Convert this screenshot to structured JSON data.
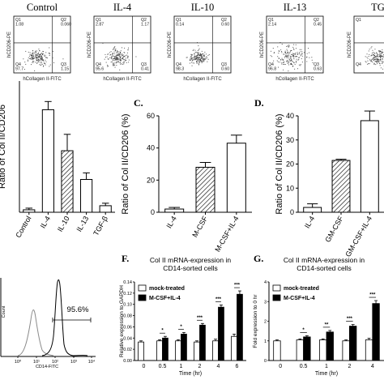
{
  "flow_panels": [
    {
      "title": "Control",
      "ylabel": "hCD206-PE",
      "xlabel": "hCollagen II-FITC",
      "q1": "Q1\n1.08",
      "q2": "Q2\n0.060",
      "q3": "Q3\n1.15",
      "q4": "Q4\n97.7"
    },
    {
      "title": "IL-4",
      "ylabel": "hCD206-PE",
      "xlabel": "hCollagen II-FITC",
      "q1": "Q1\n2.87",
      "q2": "Q2\n1.17",
      "q3": "Q3\n0.41",
      "q4": "Q4\n95.6"
    },
    {
      "title": "IL-10",
      "ylabel": "hCD206-PE",
      "xlabel": "hCollagen II-FITC",
      "q1": "Q1\n0.14",
      "q2": "Q2\n0.60",
      "q3": "Q3\n0.60",
      "q4": "Q4\n98.3"
    },
    {
      "title": "IL-13",
      "ylabel": "hCD206-PE",
      "xlabel": "hCollagen II-FITC",
      "q1": "Q1\n2.14",
      "q2": "Q2\n0.45",
      "q3": "Q3\n0.63",
      "q4": "Q4\n96.8"
    },
    {
      "title": "TGF-",
      "ylabel": "hCD206-PE",
      "xlabel": "",
      "q1": "Q1",
      "q2": "",
      "q3": "",
      "q4": "Q4"
    }
  ],
  "panel_letters": {
    "c": "C.",
    "d": "D.",
    "f": "F.",
    "g": "G."
  },
  "chart_data": [
    {
      "id": "B",
      "type": "bar",
      "ylabel": "Ratio of Col II/CD206",
      "ylim": [
        0,
        1.6
      ],
      "categories": [
        "Control",
        "IL-4",
        "IL-10",
        "IL-13",
        "TGF-β"
      ],
      "values": [
        0.03,
        1.25,
        0.75,
        0.4,
        0.08
      ],
      "errors": [
        0.02,
        0.1,
        0.2,
        0.08,
        0.03
      ],
      "hatch": [
        false,
        false,
        true,
        false,
        false
      ]
    },
    {
      "id": "C",
      "type": "bar",
      "ylabel": "Ratio of Col II/CD206 (%)",
      "ylim": [
        0,
        60
      ],
      "yticks": [
        0,
        20,
        40,
        60
      ],
      "categories": [
        "IL-4",
        "M-CSF",
        "M-CSF+IL-4"
      ],
      "values": [
        2,
        28,
        43
      ],
      "errors": [
        1,
        3,
        5
      ],
      "hatch": [
        false,
        true,
        false
      ]
    },
    {
      "id": "D",
      "type": "bar",
      "ylabel": "Ratio of Col II/CD206 (%)",
      "ylim": [
        0,
        40
      ],
      "yticks": [
        0,
        10,
        20,
        30,
        40
      ],
      "categories": [
        "IL-4",
        "GM-CSF",
        "GM-CSF+IL-4"
      ],
      "values": [
        2,
        21.5,
        38
      ],
      "errors": [
        1.5,
        0.5,
        4
      ],
      "hatch": [
        false,
        true,
        false
      ]
    },
    {
      "id": "E",
      "type": "line",
      "xlabel": "CD14-FITC",
      "ylabel": "Count",
      "annotation": "95.6%",
      "xticks": [
        "10⁰",
        "10¹",
        "10²",
        "10³",
        "10⁴"
      ]
    },
    {
      "id": "F",
      "type": "bar",
      "title": "Col II mRNA-expression in CD14-sorted cells",
      "ylabel": "Relative expression to GAPDH",
      "xlabel": "Time (hr)",
      "ylim": [
        0,
        0.14
      ],
      "yticks": [
        "0.00",
        "0.02",
        "0.04",
        "0.06",
        "0.08",
        "0.10",
        "0.12",
        "0.14"
      ],
      "categories": [
        "0",
        "0.5",
        "1",
        "2",
        "4",
        "6"
      ],
      "series": [
        {
          "name": "mock-treated",
          "values": [
            0.033,
            0.035,
            0.035,
            0.033,
            0.035,
            0.043
          ],
          "errors": [
            0.002,
            0.002,
            0.002,
            0.002,
            0.003,
            0.004
          ]
        },
        {
          "name": "M-CSF+IL-4",
          "values": [
            null,
            0.04,
            0.047,
            0.063,
            0.095,
            0.118
          ],
          "errors": [
            null,
            0.003,
            0.003,
            0.003,
            0.004,
            0.006
          ]
        }
      ],
      "stars": [
        "",
        "*",
        "*",
        "***",
        "***",
        "***"
      ]
    },
    {
      "id": "G",
      "type": "bar",
      "title": "Col II mRNA-expression in CD14-sorted cells",
      "ylabel": "Fold expression to 0 hr",
      "xlabel": "Time (hr)",
      "ylim": [
        0,
        4
      ],
      "yticks": [
        "0",
        "1",
        "2",
        "3",
        "4"
      ],
      "categories": [
        "0",
        "0.5",
        "1",
        "2",
        "4"
      ],
      "series": [
        {
          "name": "mock-treated",
          "values": [
            1,
            1.05,
            1.05,
            1.0,
            1.05
          ],
          "errors": [
            0.05,
            0.05,
            0.05,
            0.05,
            0.08
          ]
        },
        {
          "name": "M-CSF+IL-4",
          "values": [
            null,
            1.2,
            1.45,
            1.75,
            2.9
          ],
          "errors": [
            null,
            0.06,
            0.08,
            0.08,
            0.15
          ]
        }
      ],
      "stars": [
        "",
        "*",
        "**",
        "***",
        "***"
      ]
    }
  ]
}
